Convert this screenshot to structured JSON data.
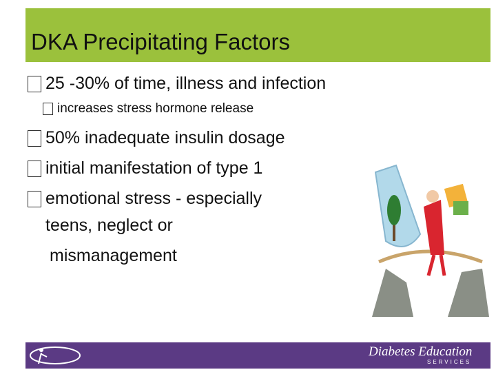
{
  "header": {
    "title": "DKA Precipitating Factors"
  },
  "bullets": [
    {
      "text": "25 -30% of time, illness and infection",
      "sub": "increases stress hormone release"
    },
    {
      "text": "50% inadequate insulin dosage"
    },
    {
      "text": "initial manifestation of type 1"
    },
    {
      "lines": [
        "emotional stress - especially",
        "teens, neglect or",
        "mismanagement"
      ]
    }
  ],
  "footer": {
    "logo": "Diabetes Education",
    "logo_sub": "SERVICES"
  }
}
